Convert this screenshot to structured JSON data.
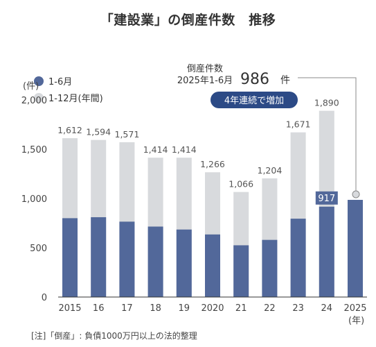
{
  "title": "「建設業」の倒産件数　推移",
  "note": "[注]「倒産」: 負債1000万円以上の法的整理",
  "callout": {
    "line1": "倒産件数",
    "line2_prefix": "2025年1-6月",
    "value": "986",
    "unit": "件",
    "badge": "4年連続で増加"
  },
  "chart_data": {
    "type": "bar",
    "categories": [
      "2015",
      "16",
      "17",
      "18",
      "19",
      "2020",
      "21",
      "22",
      "23",
      "24",
      "2025"
    ],
    "x_unit": "(年)",
    "y_unit": "(件)",
    "ylim": [
      0,
      2000
    ],
    "yticks": [
      0,
      500,
      1000,
      1500,
      2000
    ],
    "ytick_labels": [
      "0",
      "500",
      "1,000",
      "1,500",
      "2,000"
    ],
    "grid": false,
    "legend_position": "top-left",
    "series": [
      {
        "name": "1-12月(年間)",
        "color": "#d8dadd",
        "values": [
          1612,
          1594,
          1571,
          1414,
          1414,
          1266,
          1066,
          1204,
          1671,
          1890,
          null
        ],
        "labels": [
          "1,612",
          "1,594",
          "1,571",
          "1,414",
          "1,414",
          "1,266",
          "1,066",
          "1,204",
          "1,671",
          "1,890",
          ""
        ]
      },
      {
        "name": "1-6月",
        "color": "#52689a",
        "values": [
          800,
          810,
          765,
          715,
          685,
          635,
          525,
          580,
          795,
          917,
          986
        ],
        "labels": [
          "",
          "",
          "",
          "",
          "",
          "",
          "",
          "",
          "",
          "917",
          ""
        ]
      }
    ]
  }
}
